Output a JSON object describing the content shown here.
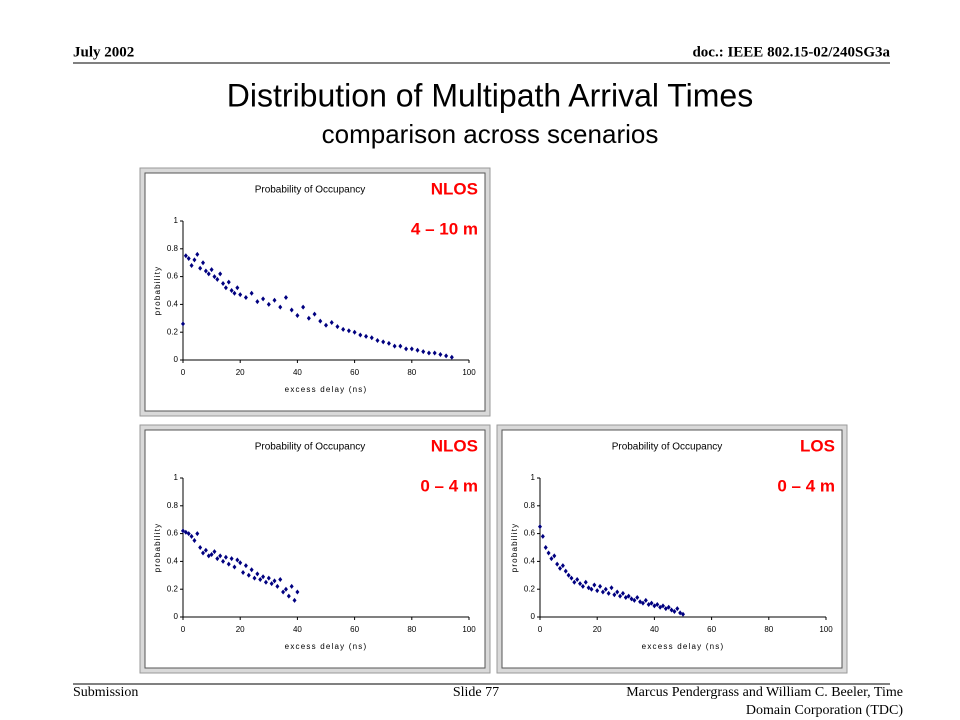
{
  "header": {
    "date": "July 2002",
    "doc": "doc.: IEEE 802.15-02/240SG3a"
  },
  "title": "Distribution of Multipath Arrival Times",
  "subtitle": "comparison across scenarios",
  "chart_data": [
    {
      "type": "scatter",
      "title": "Probability of Occupancy",
      "annotations": [
        "NLOS",
        "4 – 10 m"
      ],
      "annotation_color": "#ff0000",
      "xlabel": "excess delay (ns)",
      "ylabel": "probability",
      "color": "#000080",
      "xlim": [
        0,
        100
      ],
      "ylim": [
        0,
        1
      ],
      "xticks": [
        0,
        20,
        40,
        60,
        80,
        100
      ],
      "yticks": [
        0,
        0.2,
        0.4,
        0.6,
        0.8,
        1
      ],
      "x": [
        0,
        1,
        2,
        3,
        4,
        5,
        6,
        7,
        8,
        9,
        10,
        11,
        12,
        13,
        14,
        15,
        16,
        17,
        18,
        19,
        20,
        22,
        24,
        26,
        28,
        30,
        32,
        34,
        36,
        38,
        40,
        42,
        44,
        46,
        48,
        50,
        52,
        54,
        56,
        58,
        60,
        62,
        64,
        66,
        68,
        70,
        72,
        74,
        76,
        78,
        80,
        82,
        84,
        86,
        88,
        90,
        92,
        94
      ],
      "values": [
        0.26,
        0.75,
        0.73,
        0.68,
        0.72,
        0.76,
        0.66,
        0.7,
        0.64,
        0.62,
        0.65,
        0.6,
        0.58,
        0.62,
        0.55,
        0.52,
        0.56,
        0.5,
        0.48,
        0.52,
        0.47,
        0.45,
        0.48,
        0.42,
        0.44,
        0.4,
        0.43,
        0.38,
        0.45,
        0.36,
        0.32,
        0.38,
        0.3,
        0.33,
        0.28,
        0.25,
        0.27,
        0.24,
        0.22,
        0.21,
        0.2,
        0.18,
        0.17,
        0.16,
        0.14,
        0.13,
        0.12,
        0.1,
        0.1,
        0.08,
        0.08,
        0.07,
        0.06,
        0.05,
        0.05,
        0.04,
        0.03,
        0.02
      ]
    },
    {
      "type": "scatter",
      "title": "Probability of Occupancy",
      "annotations": [
        "NLOS",
        "0 – 4 m"
      ],
      "annotation_color": "#ff0000",
      "xlabel": "excess delay (ns)",
      "ylabel": "probability",
      "color": "#000080",
      "xlim": [
        0,
        100
      ],
      "ylim": [
        0,
        1
      ],
      "xticks": [
        0,
        20,
        40,
        60,
        80,
        100
      ],
      "yticks": [
        0,
        0.2,
        0.4,
        0.6,
        0.8,
        1
      ],
      "x": [
        0,
        1,
        2,
        3,
        4,
        5,
        6,
        7,
        8,
        9,
        10,
        11,
        12,
        13,
        14,
        15,
        16,
        17,
        18,
        19,
        20,
        21,
        22,
        23,
        24,
        25,
        26,
        27,
        28,
        29,
        30,
        31,
        32,
        33,
        34,
        35,
        36,
        37,
        38,
        39,
        40
      ],
      "values": [
        0.62,
        0.61,
        0.6,
        0.58,
        0.55,
        0.6,
        0.5,
        0.46,
        0.48,
        0.44,
        0.45,
        0.47,
        0.42,
        0.44,
        0.4,
        0.43,
        0.38,
        0.42,
        0.36,
        0.41,
        0.39,
        0.32,
        0.37,
        0.3,
        0.34,
        0.28,
        0.31,
        0.27,
        0.29,
        0.25,
        0.28,
        0.24,
        0.26,
        0.22,
        0.27,
        0.18,
        0.2,
        0.15,
        0.22,
        0.12,
        0.18
      ]
    },
    {
      "type": "scatter",
      "title": "Probability of Occupancy",
      "annotations": [
        "LOS",
        "0 – 4 m"
      ],
      "annotation_color": "#ff0000",
      "xlabel": "excess delay (ns)",
      "ylabel": "probability",
      "color": "#000080",
      "xlim": [
        0,
        100
      ],
      "ylim": [
        0,
        1
      ],
      "xticks": [
        0,
        20,
        40,
        60,
        80,
        100
      ],
      "yticks": [
        0,
        0.2,
        0.4,
        0.6,
        0.8,
        1
      ],
      "x": [
        0,
        1,
        2,
        3,
        4,
        5,
        6,
        7,
        8,
        9,
        10,
        11,
        12,
        13,
        14,
        15,
        16,
        17,
        18,
        19,
        20,
        21,
        22,
        23,
        24,
        25,
        26,
        27,
        28,
        29,
        30,
        31,
        32,
        33,
        34,
        35,
        36,
        37,
        38,
        39,
        40,
        41,
        42,
        43,
        44,
        45,
        46,
        47,
        48,
        49,
        50
      ],
      "values": [
        0.65,
        0.58,
        0.5,
        0.46,
        0.42,
        0.44,
        0.38,
        0.35,
        0.37,
        0.33,
        0.3,
        0.28,
        0.25,
        0.27,
        0.24,
        0.22,
        0.25,
        0.21,
        0.2,
        0.23,
        0.19,
        0.22,
        0.18,
        0.2,
        0.17,
        0.21,
        0.16,
        0.18,
        0.15,
        0.17,
        0.14,
        0.15,
        0.13,
        0.12,
        0.14,
        0.11,
        0.1,
        0.12,
        0.09,
        0.1,
        0.08,
        0.09,
        0.07,
        0.08,
        0.06,
        0.07,
        0.05,
        0.04,
        0.06,
        0.03,
        0.02
      ]
    }
  ],
  "footer": {
    "left": "Submission",
    "center": "Slide 77",
    "right": [
      "Marcus Pendergrass and William C. Beeler, Time",
      "Domain Corporation (TDC)"
    ]
  }
}
